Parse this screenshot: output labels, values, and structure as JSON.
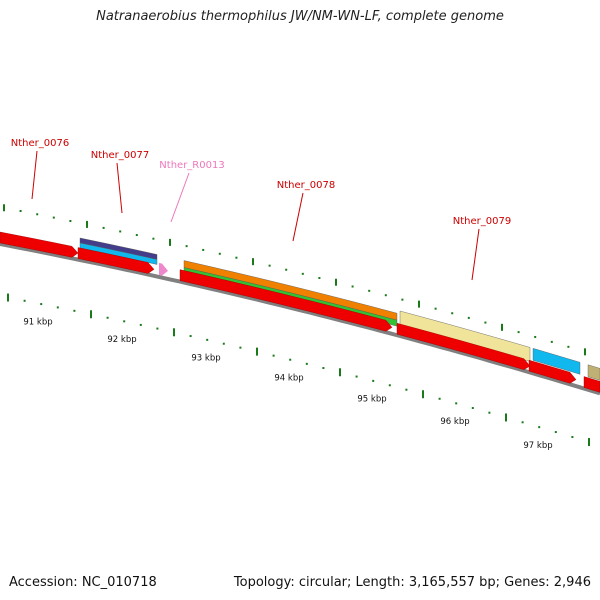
{
  "title": "Natranaerobius thermophilus JW/NM-WN-LF, complete genome",
  "accession": "Accession: NC_010718",
  "summary": "Topology: circular; Length: 3,165,557 bp; Genes: 2,946",
  "colors": {
    "gene": "#ee0000",
    "gene_label": "#cc0000",
    "rna": "#ee88cc",
    "rna_label": "#ee77bb",
    "backbone": "#808080",
    "tick": "#1a7a1a",
    "cds_purple": "#443d8a",
    "cds_cyan": "#11b8ee",
    "cds_orange": "#f08000",
    "cds_green": "#33c233",
    "cds_khaki": "#f0e39a",
    "cds_olive": "#bfb173"
  },
  "gene_labels": [
    {
      "name": "Nther_0076",
      "kind": "gene"
    },
    {
      "name": "Nther_0077",
      "kind": "gene"
    },
    {
      "name": "Nther_R0013",
      "kind": "rna"
    },
    {
      "name": "Nther_0078",
      "kind": "gene"
    },
    {
      "name": "Nther_0079",
      "kind": "gene"
    }
  ],
  "scale_labels": [
    "91 kbp",
    "92 kbp",
    "93 kbp",
    "94 kbp",
    "95 kbp",
    "96 kbp",
    "97 kbp"
  ]
}
